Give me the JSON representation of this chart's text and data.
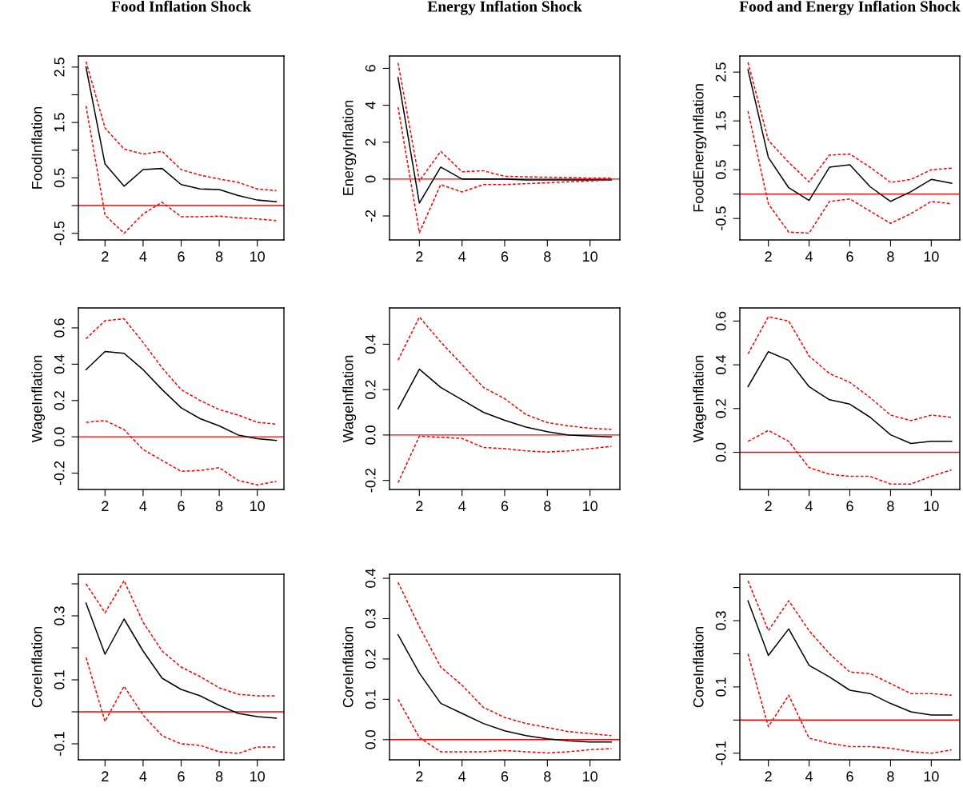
{
  "chart_data": [
    {
      "type": "line",
      "title": "Food Inflation Shock",
      "ylabel": "FoodInflation",
      "x": [
        1,
        2,
        3,
        4,
        5,
        6,
        7,
        8,
        9,
        10,
        11
      ],
      "xlim": [
        0.6,
        11.4
      ],
      "xticks": [
        2,
        4,
        6,
        8,
        10
      ],
      "ylim": [
        -0.62,
        2.7
      ],
      "yticks": [
        -0.5,
        {
          "value": 0,
          "label": null
        },
        0.5,
        {
          "value": 1,
          "label": null
        },
        1.5,
        {
          "value": 2,
          "label": null
        },
        2.5
      ],
      "ref_lines": [
        {
          "axis": "y",
          "value": 0,
          "color": "#ff0000"
        }
      ],
      "series": [
        {
          "color": "#000000",
          "line_style": "solid",
          "values": [
            2.5,
            0.75,
            0.35,
            0.65,
            0.67,
            0.38,
            0.3,
            0.29,
            0.18,
            0.1,
            0.07
          ]
        },
        {
          "color": "#ff0000",
          "line_style": "dashed",
          "values": [
            2.6,
            1.4,
            1.02,
            0.93,
            0.98,
            0.65,
            0.55,
            0.48,
            0.42,
            0.3,
            0.27
          ]
        },
        {
          "color": "#ff0000",
          "line_style": "dashed",
          "values": [
            1.8,
            -0.17,
            -0.5,
            -0.15,
            0.06,
            -0.2,
            -0.2,
            -0.19,
            -0.22,
            -0.24,
            -0.27
          ]
        }
      ]
    },
    {
      "type": "line",
      "title": "Energy Inflation Shock",
      "ylabel": "EnergyInflation",
      "x": [
        1,
        2,
        3,
        4,
        5,
        6,
        7,
        8,
        9,
        10,
        11
      ],
      "xlim": [
        0.6,
        11.4
      ],
      "xticks": [
        2,
        4,
        6,
        8,
        10
      ],
      "ylim": [
        -3.3,
        6.67
      ],
      "yticks": [
        -2,
        0,
        2,
        4,
        6
      ],
      "ref_lines": [
        {
          "axis": "y",
          "value": 0,
          "color": "#ff0000"
        }
      ],
      "series": [
        {
          "color": "#000000",
          "line_style": "solid",
          "values": [
            5.5,
            -1.3,
            0.65,
            0,
            0,
            0,
            -0.05,
            -0.05,
            -0.05,
            -0.05,
            -0.05
          ]
        },
        {
          "color": "#ff0000",
          "line_style": "dashed",
          "values": [
            6.3,
            -0.1,
            1.5,
            0.4,
            0.45,
            0.15,
            0.12,
            0.1,
            0.08,
            0.05,
            0.05
          ]
        },
        {
          "color": "#ff0000",
          "line_style": "dashed",
          "values": [
            3.9,
            -2.9,
            -0.3,
            -0.7,
            -0.3,
            -0.3,
            -0.25,
            -0.2,
            -0.15,
            -0.1,
            -0.05
          ]
        }
      ]
    },
    {
      "type": "line",
      "title": "Food and Energy Inflation Shock",
      "ylabel": "FoodEnergyInflation",
      "x": [
        1,
        2,
        3,
        4,
        5,
        6,
        7,
        8,
        9,
        10,
        11
      ],
      "xlim": [
        0.6,
        11.4
      ],
      "xticks": [
        2,
        4,
        6,
        8,
        10
      ],
      "ylim": [
        -0.94,
        2.83
      ],
      "yticks": [
        -0.5,
        {
          "value": 0,
          "label": null
        },
        0.5,
        {
          "value": 1,
          "label": null
        },
        1.5,
        {
          "value": 2,
          "label": null
        },
        2.5
      ],
      "ref_lines": [
        {
          "axis": "y",
          "value": 0,
          "color": "#ff0000"
        }
      ],
      "series": [
        {
          "color": "#000000",
          "line_style": "solid",
          "values": [
            2.55,
            0.75,
            0.13,
            -0.13,
            0.55,
            0.6,
            0.15,
            -0.15,
            0.05,
            0.3,
            0.22
          ]
        },
        {
          "color": "#ff0000",
          "line_style": "dashed",
          "values": [
            2.7,
            1.1,
            0.65,
            0.25,
            0.8,
            0.82,
            0.55,
            0.24,
            0.3,
            0.5,
            0.53
          ]
        },
        {
          "color": "#ff0000",
          "line_style": "dashed",
          "values": [
            1.7,
            -0.2,
            -0.78,
            -0.8,
            -0.15,
            -0.1,
            -0.35,
            -0.6,
            -0.4,
            -0.15,
            -0.2
          ]
        }
      ]
    },
    {
      "type": "line",
      "ylabel": "WageInflation",
      "x": [
        1,
        2,
        3,
        4,
        5,
        6,
        7,
        8,
        9,
        10,
        11
      ],
      "xlim": [
        0.6,
        11.4
      ],
      "xticks": [
        2,
        4,
        6,
        8,
        10
      ],
      "ylim": [
        -0.29,
        0.71
      ],
      "yticks": [
        -0.2,
        {
          "value": 0,
          "label": "0.0"
        },
        0.2,
        0.4,
        0.6
      ],
      "ref_lines": [
        {
          "axis": "y",
          "value": 0,
          "color": "#ff0000"
        }
      ],
      "series": [
        {
          "color": "#000000",
          "line_style": "solid",
          "values": [
            0.37,
            0.47,
            0.46,
            0.37,
            0.26,
            0.16,
            0.1,
            0.06,
            0.01,
            -0.01,
            -0.02
          ]
        },
        {
          "color": "#ff0000",
          "line_style": "dashed",
          "values": [
            0.54,
            0.64,
            0.65,
            0.52,
            0.38,
            0.26,
            0.2,
            0.15,
            0.12,
            0.08,
            0.07
          ]
        },
        {
          "color": "#ff0000",
          "line_style": "dashed",
          "values": [
            0.08,
            0.09,
            0.04,
            -0.07,
            -0.13,
            -0.19,
            -0.185,
            -0.17,
            -0.24,
            -0.265,
            -0.245
          ]
        }
      ]
    },
    {
      "type": "line",
      "ylabel": "WageInflation",
      "x": [
        1,
        2,
        3,
        4,
        5,
        6,
        7,
        8,
        9,
        10,
        11
      ],
      "xlim": [
        0.6,
        11.4
      ],
      "xticks": [
        2,
        4,
        6,
        8,
        10
      ],
      "ylim": [
        -0.24,
        0.56
      ],
      "yticks": [
        -0.2,
        {
          "value": 0,
          "label": "0.0"
        },
        0.2,
        0.4
      ],
      "ref_lines": [
        {
          "axis": "y",
          "value": 0,
          "color": "#ff0000"
        }
      ],
      "series": [
        {
          "color": "#000000",
          "line_style": "solid",
          "values": [
            0.115,
            0.29,
            0.21,
            0.155,
            0.1,
            0.065,
            0.035,
            0.015,
            0.0,
            -0.005,
            -0.008
          ]
        },
        {
          "color": "#ff0000",
          "line_style": "dashed",
          "values": [
            0.33,
            0.52,
            0.41,
            0.31,
            0.21,
            0.16,
            0.09,
            0.055,
            0.04,
            0.03,
            0.025
          ]
        },
        {
          "color": "#ff0000",
          "line_style": "dashed",
          "values": [
            -0.21,
            -0.005,
            -0.01,
            -0.015,
            -0.055,
            -0.06,
            -0.07,
            -0.075,
            -0.07,
            -0.06,
            -0.05
          ]
        }
      ]
    },
    {
      "type": "line",
      "ylabel": "WageInflation",
      "x": [
        1,
        2,
        3,
        4,
        5,
        6,
        7,
        8,
        9,
        10,
        11
      ],
      "xlim": [
        0.6,
        11.4
      ],
      "xticks": [
        2,
        4,
        6,
        8,
        10
      ],
      "ylim": [
        -0.17,
        0.66
      ],
      "yticks": [
        {
          "value": 0,
          "label": "0.0"
        },
        0.2,
        0.4,
        0.6
      ],
      "ref_lines": [
        {
          "axis": "y",
          "value": 0,
          "color": "#ff0000"
        }
      ],
      "series": [
        {
          "color": "#000000",
          "line_style": "solid",
          "values": [
            0.3,
            0.46,
            0.42,
            0.3,
            0.24,
            0.22,
            0.16,
            0.08,
            0.04,
            0.05,
            0.05
          ]
        },
        {
          "color": "#ff0000",
          "line_style": "dashed",
          "values": [
            0.45,
            0.62,
            0.6,
            0.44,
            0.36,
            0.32,
            0.25,
            0.17,
            0.145,
            0.17,
            0.16
          ]
        },
        {
          "color": "#ff0000",
          "line_style": "dashed",
          "values": [
            0.05,
            0.1,
            0.05,
            -0.07,
            -0.1,
            -0.11,
            -0.11,
            -0.145,
            -0.145,
            -0.11,
            -0.08
          ]
        }
      ]
    },
    {
      "type": "line",
      "ylabel": "CoreInflation",
      "x": [
        1,
        2,
        3,
        4,
        5,
        6,
        7,
        8,
        9,
        10,
        11
      ],
      "xlim": [
        0.6,
        11.4
      ],
      "xticks": [
        2,
        4,
        6,
        8,
        10
      ],
      "ylim": [
        -0.15,
        0.43
      ],
      "yticks": [
        -0.1,
        {
          "value": 0,
          "label": null
        },
        0.1,
        {
          "value": 0.2,
          "label": null
        },
        0.3,
        {
          "value": 0.4,
          "label": null
        }
      ],
      "ref_lines": [
        {
          "axis": "y",
          "value": 0,
          "color": "#ff0000"
        }
      ],
      "series": [
        {
          "color": "#000000",
          "line_style": "solid",
          "values": [
            0.34,
            0.18,
            0.29,
            0.19,
            0.105,
            0.07,
            0.05,
            0.02,
            -0.005,
            -0.015,
            -0.02
          ]
        },
        {
          "color": "#ff0000",
          "line_style": "dashed",
          "values": [
            0.4,
            0.31,
            0.41,
            0.28,
            0.19,
            0.14,
            0.11,
            0.075,
            0.055,
            0.05,
            0.05
          ]
        },
        {
          "color": "#ff0000",
          "line_style": "dashed",
          "values": [
            0.17,
            -0.03,
            0.08,
            -0.01,
            -0.075,
            -0.1,
            -0.105,
            -0.125,
            -0.13,
            -0.11,
            -0.11
          ]
        }
      ]
    },
    {
      "type": "line",
      "ylabel": "CoreInflation",
      "x": [
        1,
        2,
        3,
        4,
        5,
        6,
        7,
        8,
        9,
        10,
        11
      ],
      "xlim": [
        0.6,
        11.4
      ],
      "xticks": [
        2,
        4,
        6,
        8,
        10
      ],
      "ylim": [
        -0.05,
        0.41
      ],
      "yticks": [
        {
          "value": 0,
          "label": "0.0"
        },
        0.1,
        0.2,
        0.3,
        0.4
      ],
      "ref_lines": [
        {
          "axis": "y",
          "value": 0,
          "color": "#ff0000"
        }
      ],
      "series": [
        {
          "color": "#000000",
          "line_style": "solid",
          "values": [
            0.26,
            0.165,
            0.09,
            0.065,
            0.04,
            0.022,
            0.01,
            0.002,
            -0.003,
            -0.006,
            -0.006
          ]
        },
        {
          "color": "#ff0000",
          "line_style": "dashed",
          "values": [
            0.39,
            0.28,
            0.18,
            0.135,
            0.08,
            0.055,
            0.04,
            0.03,
            0.02,
            0.015,
            0.01
          ]
        },
        {
          "color": "#ff0000",
          "line_style": "dashed",
          "values": [
            0.1,
            0.005,
            -0.03,
            -0.03,
            -0.03,
            -0.027,
            -0.03,
            -0.033,
            -0.03,
            -0.025,
            -0.022
          ]
        }
      ]
    },
    {
      "type": "line",
      "ylabel": "CoreInflation",
      "x": [
        1,
        2,
        3,
        4,
        5,
        6,
        7,
        8,
        9,
        10,
        11
      ],
      "xlim": [
        0.6,
        11.4
      ],
      "xticks": [
        2,
        4,
        6,
        8,
        10
      ],
      "ylim": [
        -0.12,
        0.44
      ],
      "yticks": [
        -0.1,
        {
          "value": 0,
          "label": null
        },
        0.1,
        {
          "value": 0.2,
          "label": null
        },
        0.3,
        {
          "value": 0.4,
          "label": null
        }
      ],
      "ref_lines": [
        {
          "axis": "y",
          "value": 0,
          "color": "#ff0000"
        }
      ],
      "series": [
        {
          "color": "#000000",
          "line_style": "solid",
          "values": [
            0.36,
            0.195,
            0.275,
            0.165,
            0.13,
            0.09,
            0.08,
            0.05,
            0.025,
            0.015,
            0.015
          ]
        },
        {
          "color": "#ff0000",
          "line_style": "dashed",
          "values": [
            0.42,
            0.27,
            0.36,
            0.27,
            0.2,
            0.145,
            0.14,
            0.11,
            0.08,
            0.08,
            0.075
          ]
        },
        {
          "color": "#ff0000",
          "line_style": "dashed",
          "values": [
            0.2,
            -0.02,
            0.075,
            -0.055,
            -0.07,
            -0.08,
            -0.08,
            -0.085,
            -0.095,
            -0.1,
            -0.09
          ]
        }
      ]
    }
  ]
}
